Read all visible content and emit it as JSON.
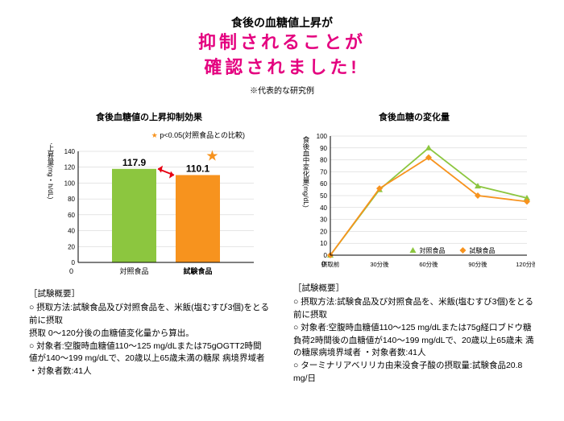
{
  "header": {
    "line1": "食後の血糖値上昇が",
    "line2": "抑制されることが\n確認されました!",
    "sub": "※代表的な研究例",
    "accent": "#e4007f"
  },
  "left": {
    "title": "食後血糖値の上昇抑制効果",
    "legend": "★ p<0.05(対照食品との比較)",
    "ylabel": "食後血糖値の上昇量(mg・h/dL)",
    "categories": [
      "対照食品",
      "試験食品"
    ],
    "values": [
      117.9,
      110.1
    ],
    "labels": [
      "117.9",
      "110.1"
    ],
    "bar_colors": [
      "#8cc63f",
      "#f7931e"
    ],
    "yticks": [
      0,
      20,
      40,
      60,
      80,
      100,
      120,
      140
    ],
    "ylim": [
      0,
      140
    ],
    "star_color": "#f7931e",
    "arrow_color": "#e60012",
    "grid_color": "#cccccc",
    "axis_color": "#000000",
    "summary_header": "［試験概要］",
    "summary": "○ 摂取方法:試験食品及び対照食品を、米飯(塩むすび3個)をとる前に摂取\n摂取 0〜120分後の血糖値変化量から算出。\n○ 対象者:空腹時血糖値110〜125 mg/dLまたは75gOGTT2時間値が140〜199 mg/dLで、20歳以上65歳未満の糖尿 病境界域者 ・対象者数:41人"
  },
  "right": {
    "title": "食後血糖の変化量",
    "ylabel": "食後血中変化量(mg/dL)",
    "xticks": [
      "摂取前",
      "30分後",
      "60分後",
      "90分後",
      "120分後"
    ],
    "yticks": [
      0,
      10,
      20,
      30,
      40,
      50,
      60,
      70,
      80,
      90,
      100
    ],
    "ylim": [
      0,
      100
    ],
    "series": [
      {
        "name": "対照食品",
        "color": "#8cc63f",
        "marker": "triangle",
        "values": [
          0,
          55,
          90,
          58,
          48
        ]
      },
      {
        "name": "試験食品",
        "color": "#f7931e",
        "marker": "diamond",
        "values": [
          0,
          56,
          82,
          50,
          45
        ]
      }
    ],
    "grid_color": "#cccccc",
    "axis_color": "#000000",
    "summary_header": "［試験概要］",
    "summary": "○ 摂取方法:試験食品及び対照食品を、米飯(塩むすび3個)をとる前に摂取\n○ 対象者:空腹時血糖値110〜125 mg/dLまたは75g経口ブドウ糖負荷2時間後の血糖値が140〜199 mg/dLで、20歳以上65歳未 満の糖尿病境界域者 ・対象者数:41人\n○ ターミナリアベリリカ由来没食子酸の摂取量:試験食品20.8 mg/日"
  }
}
